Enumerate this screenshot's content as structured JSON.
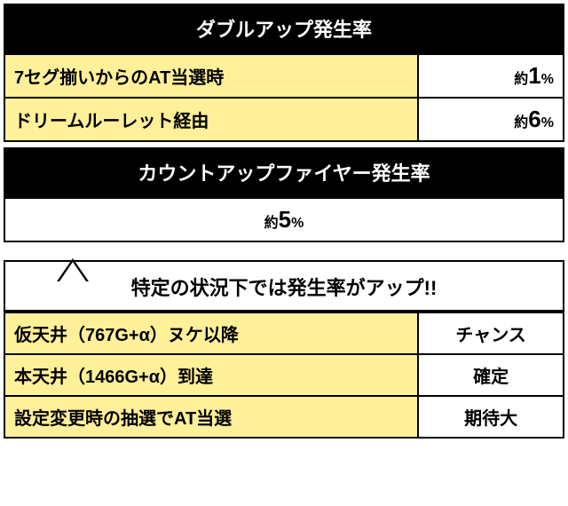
{
  "section1": {
    "header": "ダブルアップ発生率",
    "rows": [
      {
        "label": "7セグ揃いからのAT当選時",
        "prefix": "約",
        "value": "1",
        "suffix": "%"
      },
      {
        "label": "ドリームルーレット経由",
        "prefix": "約",
        "value": "6",
        "suffix": "%"
      }
    ]
  },
  "section2": {
    "header": "カウントアップファイヤー発生率",
    "rate": {
      "prefix": "約",
      "value": "5",
      "suffix": "%"
    }
  },
  "section3": {
    "header": "特定の状況下では発生率がアップ!!",
    "rows": [
      {
        "label": "仮天井（767G+α）ヌケ以降",
        "value": "チャンス"
      },
      {
        "label": "本天井（1466G+α）到達",
        "value": "確定"
      },
      {
        "label": "設定変更時の抽選でAT当選",
        "value": "期待大"
      }
    ]
  },
  "colors": {
    "header_bg": "#000000",
    "header_fg": "#ffffff",
    "yellow": "#fff099",
    "white": "#ffffff",
    "border": "#000000"
  }
}
